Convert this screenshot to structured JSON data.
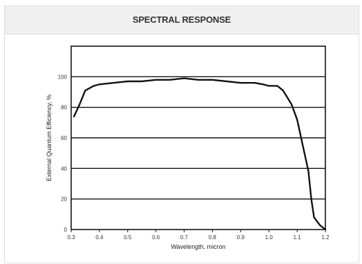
{
  "panel": {
    "title": "SPECTRAL RESPONSE"
  },
  "chart_data": {
    "type": "line",
    "title": "",
    "xlabel": "Wavelength, micron",
    "ylabel": "External Quantum Efficiency, %",
    "xlim": [
      0.3,
      1.2
    ],
    "ylim": [
      0,
      120
    ],
    "x_ticks": [
      0.3,
      0.4,
      0.5,
      0.6,
      0.7,
      0.8,
      0.9,
      1.0,
      1.1,
      1.2
    ],
    "x_tick_labels": [
      "0.3",
      "0.4",
      "0.5",
      "0.6",
      "0.7",
      "0.8",
      "0.9",
      "1.0",
      "1.1",
      "1.2"
    ],
    "y_ticks": [
      0,
      20,
      40,
      60,
      80,
      100
    ],
    "y_tick_labels": [
      "0",
      "20",
      "40",
      "60",
      "80",
      "100"
    ],
    "grid": "horizontal",
    "legend": "none",
    "color": "#111111",
    "series": [
      {
        "x": [
          0.31,
          0.33,
          0.35,
          0.38,
          0.4,
          0.45,
          0.5,
          0.55,
          0.6,
          0.65,
          0.7,
          0.75,
          0.8,
          0.85,
          0.9,
          0.95,
          0.98,
          1.0,
          1.03,
          1.05,
          1.08,
          1.1,
          1.12,
          1.14,
          1.15,
          1.16,
          1.18,
          1.2
        ],
        "y": [
          74,
          82,
          91,
          94,
          95,
          96,
          97,
          97,
          98,
          98,
          99,
          98,
          98,
          97,
          96,
          96,
          95,
          94,
          94,
          91,
          82,
          72,
          55,
          38,
          20,
          8,
          3,
          0
        ]
      }
    ]
  }
}
